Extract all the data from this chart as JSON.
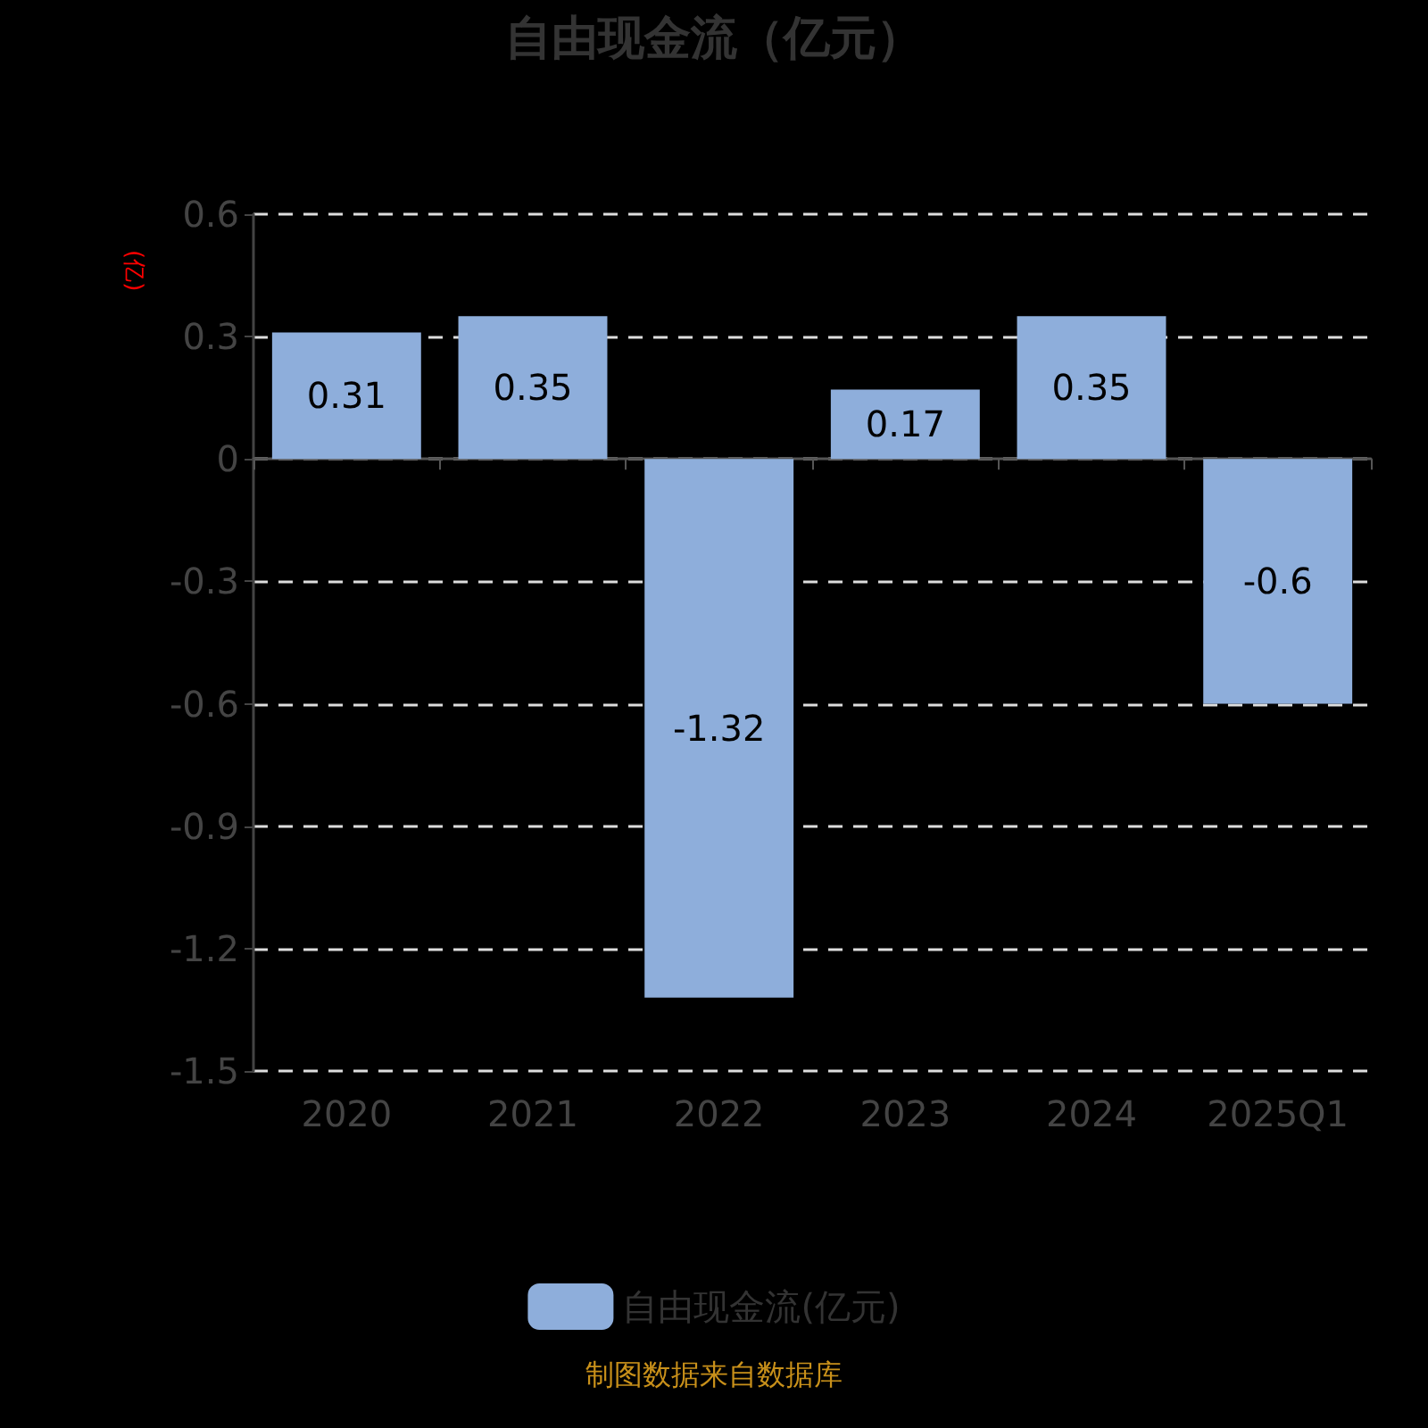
{
  "chart_data": {
    "type": "bar",
    "title": "自由现金流（亿元）",
    "ylabel": "(亿)",
    "categories": [
      "2020",
      "2021",
      "2022",
      "2023",
      "2024",
      "2025Q1"
    ],
    "series": [
      {
        "name": "自由现金流(亿元)",
        "color": "#8eaedb",
        "values": [
          0.31,
          0.35,
          -1.32,
          0.17,
          0.35,
          -0.6
        ]
      }
    ],
    "ylim": [
      -1.5,
      0.6
    ],
    "yticks": [
      -1.5,
      -1.2,
      -0.9,
      -0.6,
      -0.3,
      0,
      0.3,
      0.6
    ],
    "grid": "y",
    "legend": "bottom",
    "data_labels": true,
    "annotations": [
      "制图数据来自数据库"
    ]
  }
}
